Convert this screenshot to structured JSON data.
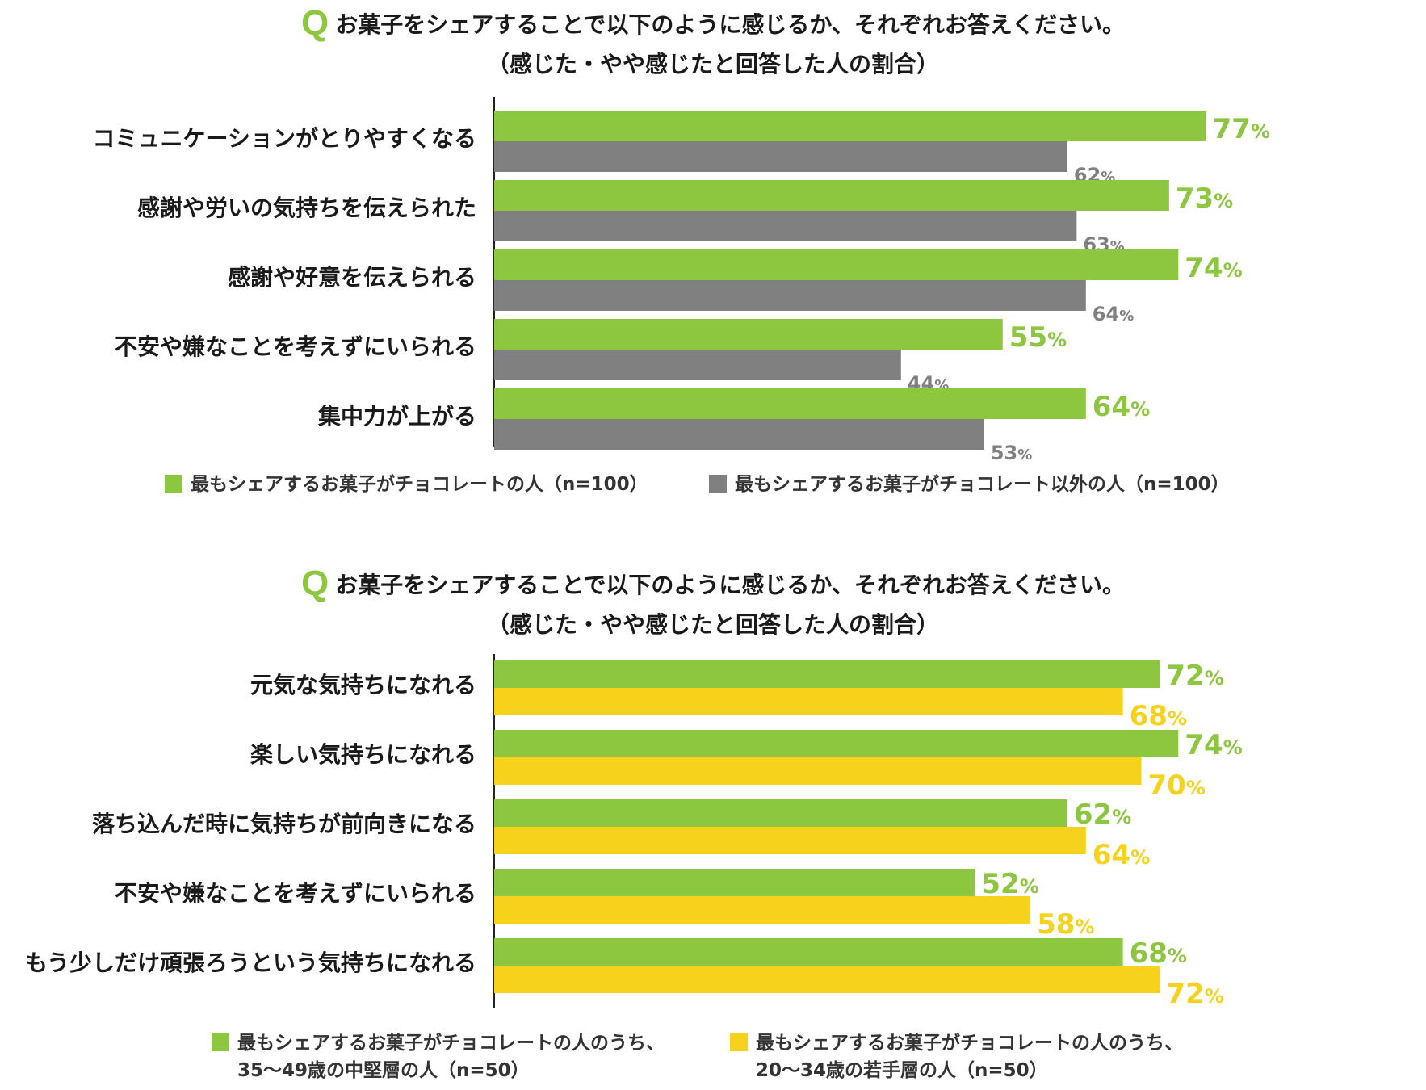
{
  "chart_data": [
    {
      "type": "bar",
      "orientation": "horizontal",
      "title": "お菓子をシェアすることで以下のように感じるか、それぞれお答えください。",
      "title_marker": "Q",
      "subtitle": "（感じた・やや感じたと回答した人の割合）",
      "categories": [
        "コミュニケーションがとりやすくなる",
        "感謝や労いの気持ちを伝えられた",
        "感謝や好意を伝えられる",
        "不安や嫌なことを考えずにいられる",
        "集中力が上がる"
      ],
      "series": [
        {
          "name": "最もシェアするお菓子がチョコレートの人（n=100）",
          "color": "#8dc63f",
          "values": [
            77,
            73,
            74,
            55,
            64
          ]
        },
        {
          "name": "最もシェアするお菓子がチョコレート以外の人（n=100）",
          "color": "#808080",
          "values": [
            62,
            63,
            64,
            44,
            53
          ]
        }
      ],
      "value_suffix": "%",
      "xlim": [
        0,
        100
      ],
      "legend_position": "bottom"
    },
    {
      "type": "bar",
      "orientation": "horizontal",
      "title": "お菓子をシェアすることで以下のように感じるか、それぞれお答えください。",
      "title_marker": "Q",
      "subtitle": "（感じた・やや感じたと回答した人の割合）",
      "categories": [
        "元気な気持ちになれる",
        "楽しい気持ちになれる",
        "落ち込んだ時に気持ちが前向きになる",
        "不安や嫌なことを考えずにいられる",
        "もう少しだけ頑張ろうという気持ちになれる"
      ],
      "series": [
        {
          "name": "最もシェアするお菓子がチョコレートの人のうち、\n35〜49歳の中堅層の人（n=50）",
          "color": "#8dc63f",
          "values": [
            72,
            74,
            62,
            52,
            68
          ]
        },
        {
          "name": "最もシェアするお菓子がチョコレートの人のうち、\n20〜34歳の若手層の人（n=50）",
          "color": "#f7d21c",
          "values": [
            68,
            70,
            64,
            58,
            72
          ]
        }
      ],
      "value_suffix": "%",
      "xlim": [
        0,
        100
      ],
      "legend_position": "bottom"
    }
  ]
}
